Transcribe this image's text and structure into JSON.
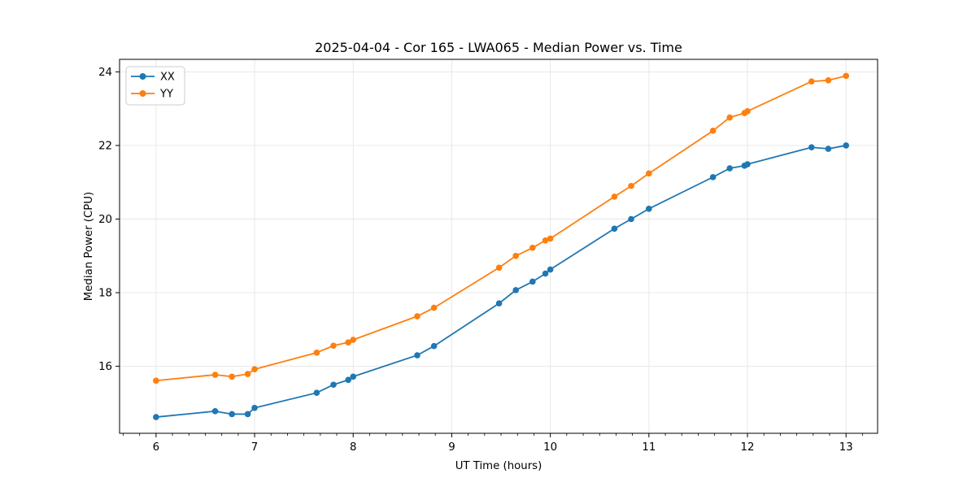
{
  "chart_data": {
    "type": "line",
    "title": "2025-04-04 - Cor 165 - LWA065 - Median Power vs. Time",
    "xlabel": "UT Time (hours)",
    "ylabel": "Median Power (CPU)",
    "xlim": [
      5.63,
      13.32
    ],
    "ylim": [
      14.18,
      24.34
    ],
    "xticks": [
      6,
      7,
      8,
      9,
      10,
      11,
      12,
      13
    ],
    "yticks": [
      16,
      18,
      20,
      22,
      24
    ],
    "x_minor_step": 0.166667,
    "grid": true,
    "grid_color": "#e6e6e6",
    "legend_position": "upper-left",
    "x": [
      6.0,
      6.6,
      6.77,
      6.93,
      7.0,
      7.63,
      7.8,
      7.95,
      8.0,
      8.65,
      8.82,
      9.48,
      9.65,
      9.82,
      9.95,
      10.0,
      10.65,
      10.82,
      11.0,
      11.65,
      11.82,
      11.97,
      12.0,
      12.65,
      12.82,
      13.0
    ],
    "series": [
      {
        "name": "XX",
        "color": "#1f77b4",
        "values": [
          14.62,
          14.78,
          14.7,
          14.7,
          14.87,
          15.28,
          15.5,
          15.63,
          15.72,
          16.3,
          16.55,
          17.71,
          18.07,
          18.3,
          18.52,
          18.63,
          19.74,
          20.0,
          20.28,
          21.14,
          21.38,
          21.45,
          21.49,
          21.95,
          21.91,
          22.0
        ]
      },
      {
        "name": "YY",
        "color": "#ff7f0e",
        "values": [
          15.61,
          15.77,
          15.72,
          15.79,
          15.92,
          16.37,
          16.56,
          16.65,
          16.72,
          17.36,
          17.59,
          18.68,
          19.0,
          19.22,
          19.42,
          19.47,
          20.61,
          20.9,
          21.24,
          22.4,
          22.76,
          22.88,
          22.93,
          23.74,
          23.77,
          23.89
        ]
      }
    ]
  }
}
